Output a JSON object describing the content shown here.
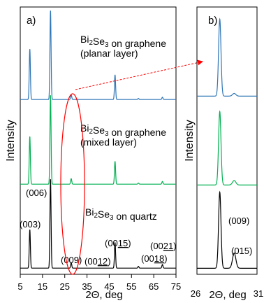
{
  "chart_data": [
    {
      "panel_label": "a)",
      "type": "line",
      "xlabel": "2Θ, deg",
      "ylabel": "Intensity",
      "xlim": [
        5,
        75
      ],
      "x_ticks": [
        "5",
        "15",
        "25",
        "35",
        "45",
        "55",
        "65",
        "75"
      ],
      "series": [
        {
          "name": "Bi2Se3 on graphene (planar layer)",
          "label_lines": [
            "Bi{2}Se{3} on graphene",
            "(planar layer)"
          ],
          "color": "#2e75b6",
          "peaks": [
            {
              "x": 9.3,
              "height": 0.55
            },
            {
              "x": 18.6,
              "height": 0.97
            },
            {
              "x": 27.9,
              "height": 0.05
            },
            {
              "x": 47.6,
              "height": 0.27
            },
            {
              "x": 58.1,
              "height": 0.012
            },
            {
              "x": 68.9,
              "height": 0.025
            }
          ]
        },
        {
          "name": "Bi2Se3 on graphene (mixed layer)",
          "label_lines": [
            "Bi{2}Se{3} on graphene",
            "(mixed layer)"
          ],
          "color": "#00b050",
          "peaks": [
            {
              "x": 9.3,
              "height": 0.52
            },
            {
              "x": 18.6,
              "height": 0.97
            },
            {
              "x": 27.9,
              "height": 0.06
            },
            {
              "x": 47.6,
              "height": 0.25
            },
            {
              "x": 58.1,
              "height": 0.012
            },
            {
              "x": 68.9,
              "height": 0.03
            }
          ]
        },
        {
          "name": "Bi2Se3 on quartz",
          "label_lines": [
            "Bi{2}Se{3} on quartz"
          ],
          "color": "#000000",
          "peaks": [
            {
              "x": 9.3,
              "height": 0.42
            },
            {
              "x": 18.6,
              "height": 0.97
            },
            {
              "x": 27.9,
              "height": 0.06
            },
            {
              "x": 47.6,
              "height": 0.28
            },
            {
              "x": 58.1,
              "height": 0.02
            },
            {
              "x": 68.9,
              "height": 0.04
            }
          ]
        }
      ],
      "annotations": [
        {
          "text": "(003)",
          "x": 9.3
        },
        {
          "text": "(006)",
          "x": 18.6
        },
        {
          "text": "(009)",
          "x": 27.9
        },
        {
          "text": "(0012)",
          "x": 37.5
        },
        {
          "text": "(0015)",
          "x": 47.6
        },
        {
          "text": "(0018)",
          "x": 57.7
        },
        {
          "text": "(0021)",
          "x": 68.2
        }
      ]
    },
    {
      "panel_label": "b)",
      "type": "line",
      "xlabel": "2Θ, deg",
      "xlim": [
        26,
        31
      ],
      "x_ticks": [
        "26",
        "31"
      ],
      "series": [
        {
          "name": "planar layer",
          "color": "#2e75b6",
          "peaks": [
            {
              "x": 27.9,
              "height": 0.86,
              "w": 0.1
            },
            {
              "x": 29.1,
              "height": 0.03,
              "w": 0.14
            }
          ]
        },
        {
          "name": "mixed layer",
          "color": "#00b050",
          "peaks": [
            {
              "x": 27.9,
              "height": 0.82,
              "w": 0.1
            },
            {
              "x": 29.1,
              "height": 0.05,
              "w": 0.14
            }
          ]
        },
        {
          "name": "quartz",
          "color": "#000000",
          "peaks": [
            {
              "x": 27.9,
              "height": 0.85,
              "w": 0.1
            },
            {
              "x": 29.1,
              "height": 0.17,
              "w": 0.14
            }
          ]
        }
      ],
      "annotations": [
        {
          "text": "(009)",
          "x": 27.9
        },
        {
          "text": "(015)",
          "x": 29.1
        }
      ]
    }
  ],
  "colors": {
    "highlight_ellipse": "#ff0000",
    "arrow": "#ff0000"
  }
}
